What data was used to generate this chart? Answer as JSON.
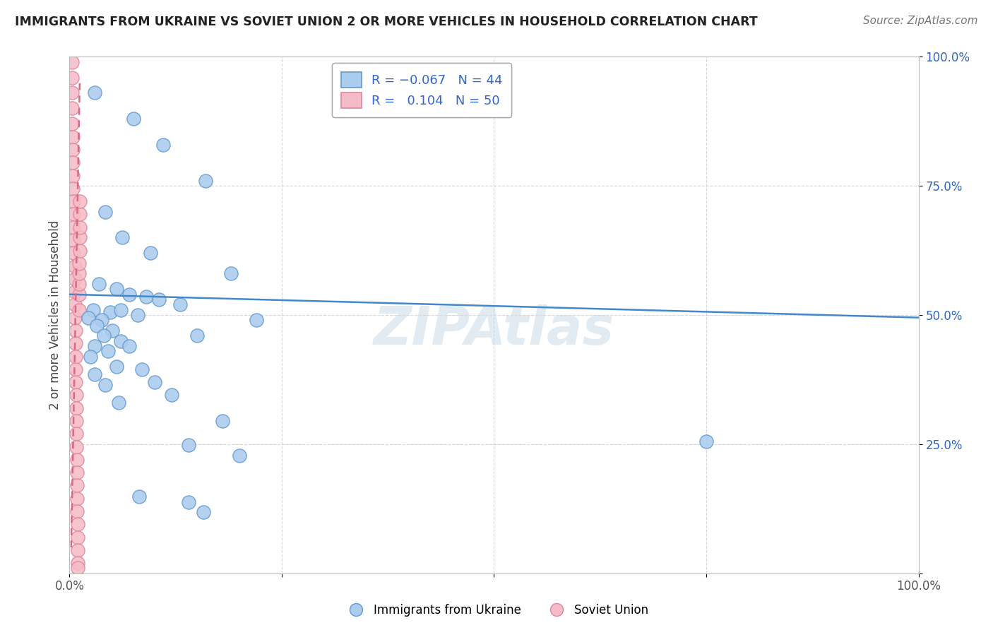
{
  "title": "IMMIGRANTS FROM UKRAINE VS SOVIET UNION 2 OR MORE VEHICLES IN HOUSEHOLD CORRELATION CHART",
  "source": "Source: ZipAtlas.com",
  "ylabel": "2 or more Vehicles in Household",
  "ukraine_R": -0.067,
  "ukraine_N": 44,
  "soviet_R": 0.104,
  "soviet_N": 50,
  "ukraine_color": "#aaccee",
  "ukraine_edge": "#6699cc",
  "soviet_color": "#f5bbc8",
  "soviet_edge": "#dd8899",
  "trendline_ukraine_color": "#4488cc",
  "trendline_soviet_color": "#dd6688",
  "watermark_color": "#cddce8",
  "xlim": [
    0.0,
    1.0
  ],
  "ylim": [
    0.0,
    1.0
  ],
  "ukraine_x": [
    0.03,
    0.075,
    0.11,
    0.16,
    0.042,
    0.062,
    0.095,
    0.19,
    0.035,
    0.055,
    0.07,
    0.09,
    0.105,
    0.13,
    0.028,
    0.048,
    0.06,
    0.08,
    0.022,
    0.038,
    0.032,
    0.05,
    0.04,
    0.06,
    0.03,
    0.045,
    0.025,
    0.055,
    0.03,
    0.042,
    0.22,
    0.15,
    0.07,
    0.085,
    0.1,
    0.12,
    0.058,
    0.18,
    0.14,
    0.2,
    0.75,
    0.082,
    0.14,
    0.158
  ],
  "ukraine_y": [
    0.93,
    0.88,
    0.83,
    0.76,
    0.7,
    0.65,
    0.62,
    0.58,
    0.56,
    0.55,
    0.54,
    0.535,
    0.53,
    0.52,
    0.51,
    0.505,
    0.51,
    0.5,
    0.495,
    0.49,
    0.48,
    0.47,
    0.46,
    0.45,
    0.44,
    0.43,
    0.42,
    0.4,
    0.385,
    0.365,
    0.49,
    0.46,
    0.44,
    0.395,
    0.37,
    0.345,
    0.33,
    0.295,
    0.248,
    0.228,
    0.255,
    0.148,
    0.138,
    0.118
  ],
  "soviet_x": [
    0.003,
    0.003,
    0.003,
    0.003,
    0.003,
    0.004,
    0.004,
    0.004,
    0.004,
    0.004,
    0.005,
    0.005,
    0.005,
    0.005,
    0.005,
    0.006,
    0.006,
    0.006,
    0.006,
    0.006,
    0.007,
    0.007,
    0.007,
    0.007,
    0.007,
    0.008,
    0.008,
    0.008,
    0.008,
    0.008,
    0.009,
    0.009,
    0.009,
    0.009,
    0.009,
    0.01,
    0.01,
    0.01,
    0.01,
    0.01,
    0.011,
    0.011,
    0.011,
    0.011,
    0.011,
    0.012,
    0.012,
    0.012,
    0.012,
    0.012
  ],
  "soviet_y": [
    0.99,
    0.96,
    0.93,
    0.9,
    0.87,
    0.845,
    0.82,
    0.795,
    0.77,
    0.745,
    0.72,
    0.695,
    0.67,
    0.645,
    0.62,
    0.595,
    0.57,
    0.545,
    0.52,
    0.495,
    0.47,
    0.445,
    0.42,
    0.395,
    0.37,
    0.345,
    0.32,
    0.295,
    0.27,
    0.245,
    0.22,
    0.195,
    0.17,
    0.145,
    0.12,
    0.095,
    0.07,
    0.045,
    0.02,
    0.01,
    0.51,
    0.54,
    0.56,
    0.58,
    0.6,
    0.625,
    0.65,
    0.67,
    0.695,
    0.72
  ],
  "uk_trend_x": [
    0.0,
    1.0
  ],
  "uk_trend_y": [
    0.54,
    0.495
  ],
  "sov_trend_x1": 0.002,
  "sov_trend_y1": 0.05,
  "sov_trend_x2": 0.012,
  "sov_trend_y2": 0.95
}
